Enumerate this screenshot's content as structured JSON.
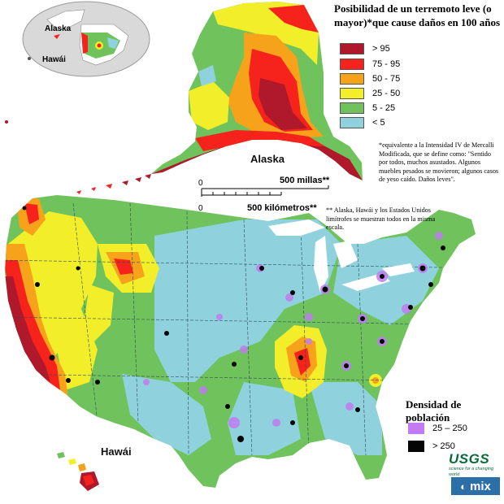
{
  "legend": {
    "title": "Posibilidad de un terremoto leve (o mayor)*que cause daños en 100 años",
    "items": [
      {
        "label": "> 95",
        "color": "#b0182c"
      },
      {
        "label": "75 - 95",
        "color": "#f5231c"
      },
      {
        "label": "50 - 75",
        "color": "#f7a21b"
      },
      {
        "label": "25 - 50",
        "color": "#f2ee2a"
      },
      {
        "label": "5 - 25",
        "color": "#6fc25c"
      },
      {
        "label": "< 5",
        "color": "#8fd2dd"
      }
    ]
  },
  "notes": {
    "intensity": "*equivalente a la Intensidad IV de Mercalli Modificada, que se define como: \"Sentido por todos, muchos asustados. Algunos muebles pesados se movieron; algunos casos de yeso caído. Daños leves\".",
    "scale": "** Alaska, Hawái y los Estados Unidos limítrofes se muestran todos en la misma escala."
  },
  "labels": {
    "alaska": "Alaska",
    "hawaii": "Hawái",
    "globe_alaska": "Alaska",
    "globe_hawaii": "Hawái"
  },
  "scale_bar": {
    "miles_label": "500 millas**",
    "km_label": "500 kilómetros**",
    "zero_top": "0",
    "zero_bottom": "0"
  },
  "population_legend": {
    "title": "Densidad de población",
    "items": [
      {
        "label": "25 – 250",
        "color": "#c17cf2"
      },
      {
        "label": "> 250",
        "color": "#050505"
      }
    ]
  },
  "logos": {
    "usgs": "USGS",
    "usgs_tagline": "science for a changing world",
    "mix": "mix"
  },
  "colors": {
    "ocean": "#ffffff",
    "low": "#8fd2dd",
    "moderate": "#6fc25c",
    "medium": "#f2ee2a",
    "high": "#f7a21b",
    "very_high": "#f5231c",
    "extreme": "#b0182c",
    "globe_sea": "#d9d9d9"
  }
}
